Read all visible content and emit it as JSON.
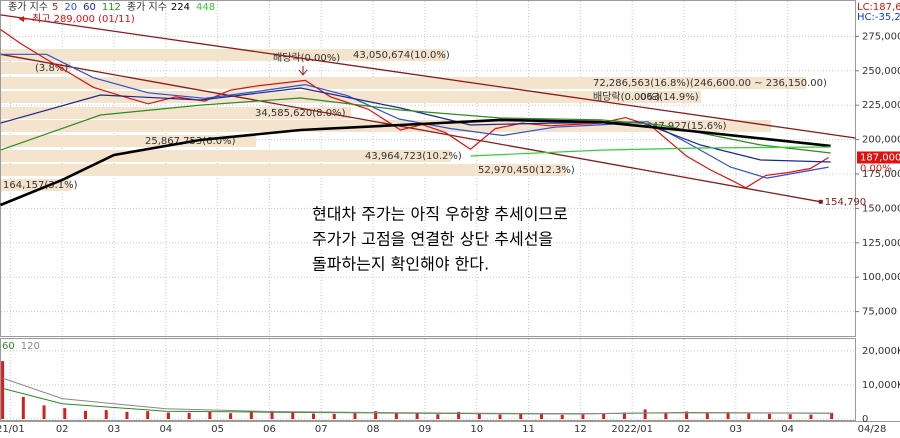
{
  "chart_data": [
    {
      "type": "line",
      "legend_label": "종가 지수",
      "high_label": "최고 289,000 (01/11)",
      "lc_label": "LC:187,69",
      "hc_label": "HC:-35,29",
      "last_price": {
        "value": 187000,
        "label": "187,000"
      },
      "last_change": "0.00%",
      "xlim": [
        -0.2,
        16.3
      ],
      "ylim": [
        58000,
        300000
      ],
      "grid": true,
      "xticks": [
        {
          "value": 0,
          "label": "21/01"
        },
        {
          "value": 1,
          "label": "02"
        },
        {
          "value": 2,
          "label": "03"
        },
        {
          "value": 3,
          "label": "04"
        },
        {
          "value": 4,
          "label": "05"
        },
        {
          "value": 5,
          "label": "06"
        },
        {
          "value": 6,
          "label": "07"
        },
        {
          "value": 7,
          "label": "08"
        },
        {
          "value": 8,
          "label": "09"
        },
        {
          "value": 9,
          "label": "10"
        },
        {
          "value": 10,
          "label": "11"
        },
        {
          "value": 11,
          "label": "12"
        },
        {
          "value": 12,
          "label": "2022/01"
        },
        {
          "value": 13,
          "label": "02"
        },
        {
          "value": 14,
          "label": "03"
        },
        {
          "value": 15,
          "label": "04"
        }
      ],
      "last_date": "04/28",
      "yticks": [
        {
          "value": 275000,
          "label": "275,000"
        },
        {
          "value": 250000,
          "label": "250,000"
        },
        {
          "value": 225000,
          "label": "225,000"
        },
        {
          "value": 200000,
          "label": "200,000"
        },
        {
          "value": 175000,
          "label": "175,000"
        },
        {
          "value": 150000,
          "label": "150,000"
        },
        {
          "value": 125000,
          "label": "125,000"
        },
        {
          "value": 100000,
          "label": "100,000"
        },
        {
          "value": 75000,
          "label": "75,000"
        }
      ],
      "series": [
        {
          "name": "5",
          "color": "#e01010",
          "x": [
            -0.19,
            0.19,
            0.71,
            1.16,
            1.6,
            2.12,
            2.66,
            3.19,
            3.75,
            4.25,
            4.77,
            5.69,
            6.18,
            6.91,
            7.53,
            7.95,
            8.4,
            8.88,
            9.36,
            9.88,
            10.42,
            10.85,
            11.39,
            11.87,
            12.36,
            13.05,
            13.51,
            13.94,
            14.19,
            14.58,
            15.0,
            15.44,
            15.79
          ],
          "values": [
            280000,
            270000,
            258000,
            248000,
            238000,
            232000,
            226000,
            231000,
            228000,
            236000,
            239000,
            243000,
            231000,
            222000,
            207000,
            211000,
            205000,
            193000,
            208000,
            212000,
            210000,
            211000,
            212000,
            216000,
            210000,
            188000,
            178000,
            170000,
            165000,
            174000,
            176000,
            179000,
            187000
          ]
        },
        {
          "name": "20",
          "color": "#3050d0",
          "x": [
            -0.19,
            0.7,
            1.6,
            2.66,
            3.75,
            4.77,
            5.69,
            6.5,
            7.5,
            8.5,
            9.5,
            10.5,
            11.5,
            12.3,
            13.05,
            13.9,
            14.6,
            15.79
          ],
          "values": [
            262000,
            262000,
            245000,
            234000,
            230000,
            235000,
            240000,
            232000,
            215000,
            208000,
            203000,
            209000,
            211000,
            213000,
            198000,
            180000,
            172000,
            180000
          ]
        },
        {
          "name": "60",
          "color": "#1a2a8a",
          "x": [
            -0.19,
            1.74,
            3.67,
            5.6,
            7.53,
            8.88,
            10.42,
            12.16,
            13.32,
            14.48,
            15.83
          ],
          "values": [
            212000,
            232400,
            228800,
            237500,
            223000,
            210600,
            212000,
            212800,
            196100,
            185200,
            183700
          ]
        },
        {
          "name": "112",
          "color": "#2e8b22",
          "x": [
            -0.19,
            1.74,
            3.67,
            5.6,
            7.53,
            9.46,
            11.39,
            12.55,
            14.48,
            15.83
          ],
          "values": [
            192400,
            217900,
            225100,
            230200,
            221500,
            215700,
            214300,
            210600,
            196100,
            190300
          ]
        },
        {
          "name": "224",
          "color": "#000000",
          "x": [
            -0.19,
            1.0,
            2.0,
            3.66,
            5.6,
            7.53,
            9.46,
            11.39,
            13.32,
            15.83
          ],
          "values": [
            152500,
            170700,
            188800,
            199700,
            207000,
            210600,
            214300,
            212800,
            205500,
            195400
          ]
        },
        {
          "name": "448",
          "color": "#33cc33",
          "x": [
            8.88,
            11.39,
            13.32,
            15.83
          ],
          "values": [
            188100,
            192400,
            193900,
            194600
          ]
        }
      ],
      "trendlines": [
        {
          "color": "#8b1a1a",
          "x": [
            -0.19,
            16.31
          ],
          "values": [
            290600,
            201200
          ]
        },
        {
          "color": "#8b1a1a",
          "x": [
            -0.19,
            15.64
          ],
          "values": [
            262000,
            154790
          ],
          "end_label": "154,790"
        }
      ],
      "annotations": [
        "43,050,674(10.0%)",
        "72,286,563(16.8%)(246,600.00 ~ 236,150.00)",
        "34,585,620(8.0%)",
        "25,867,753(6.0%)",
        "43,964,723(10.2%)",
        "52,970,450(12.3%)",
        "164,157(3.1%)",
        "(3.8%)",
        "47,927(15.6%)",
        "배당락(0.00%)",
        "배당락(0.00%)",
        "063(14.9%)"
      ]
    },
    {
      "type": "bar",
      "xlim": [
        -0.2,
        16.3
      ],
      "ylim": [
        0,
        23200
      ],
      "yticks": [
        {
          "value": 20000,
          "label": "20,000K"
        },
        {
          "value": 10000,
          "label": "10,000K"
        },
        0
      ],
      "color": "#d02020",
      "x": [
        -0.15,
        0.25,
        0.65,
        1.05,
        1.45,
        1.85,
        2.25,
        2.65,
        3.05,
        3.45,
        3.85,
        4.25,
        4.65,
        5.05,
        5.45,
        5.85,
        6.25,
        6.65,
        7.05,
        7.45,
        7.85,
        8.25,
        8.65,
        9.05,
        9.45,
        9.85,
        10.25,
        10.65,
        11.05,
        11.45,
        11.85,
        12.25,
        12.65,
        13.05,
        13.45,
        13.85,
        14.25,
        14.65,
        15.05,
        15.45,
        15.85
      ],
      "values": [
        17000,
        6500,
        4000,
        3200,
        2400,
        2600,
        2100,
        2300,
        1900,
        1800,
        2200,
        1700,
        2000,
        2400,
        1900,
        1600,
        1500,
        1700,
        2300,
        1600,
        1800,
        1400,
        2100,
        1500,
        1300,
        1700,
        1400,
        1200,
        1300,
        1500,
        1900,
        2800,
        1900,
        2200,
        1800,
        2000,
        1600,
        1500,
        1400,
        1300,
        1800
      ],
      "series": [
        {
          "name": "60",
          "color": "#2e8b22",
          "x": [
            -0.15,
            1,
            3,
            5,
            7,
            9,
            11,
            13,
            15.85
          ],
          "values": [
            9000,
            4500,
            2300,
            2000,
            1800,
            1600,
            1500,
            1900,
            1700
          ]
        },
        {
          "name": "120",
          "color": "#888888",
          "x": [
            -0.15,
            1,
            3,
            5,
            7,
            9,
            11,
            13,
            15.85
          ],
          "values": [
            12000,
            6000,
            3000,
            2200,
            1900,
            1700,
            1600,
            1800,
            1700
          ]
        }
      ]
    }
  ],
  "note": [
    "현대차 주가는 아직 우하향 추세이므로",
    "주가가 고점을 연결한 상단 추세선을",
    "돌파하는지 확인해야 한다."
  ]
}
